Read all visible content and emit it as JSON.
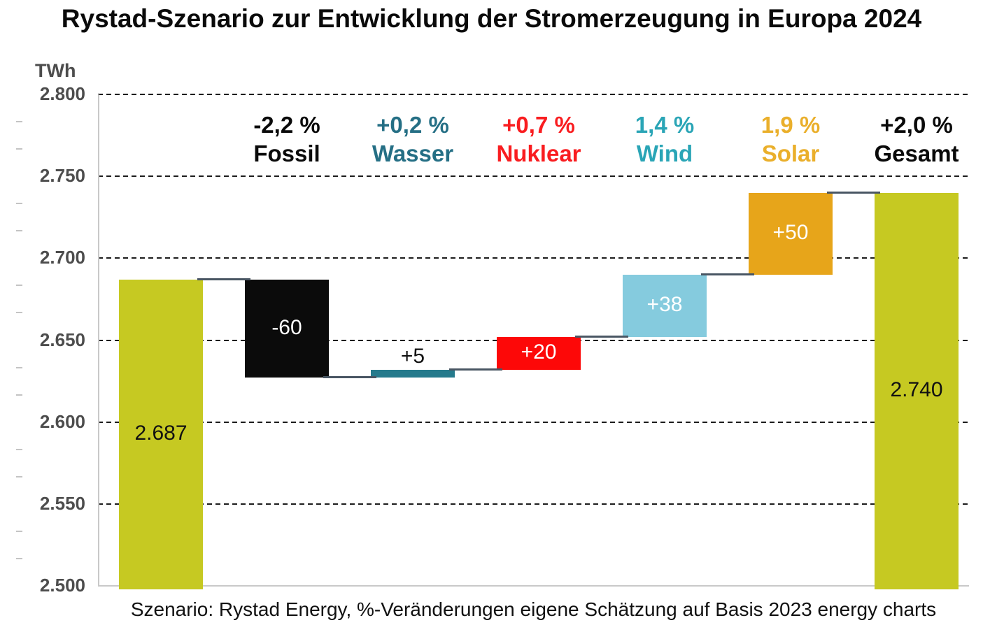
{
  "chart_data": {
    "type": "waterfall",
    "title": "Rystad-Szenario zur Entwicklung der Stromerzeugung in Europa 2024",
    "unit_label": "TWh",
    "footer": "Szenario: Rystad Energy, %-Veränderungen eigene Schätzung auf Basis 2023 energy charts",
    "grid": "horizontal dashed",
    "legend": "none",
    "y_axis": {
      "min": 2500,
      "max": 2800,
      "tick_step": 50,
      "ticks": [
        {
          "value": 2800,
          "label": "2.800"
        },
        {
          "value": 2750,
          "label": "2.750"
        },
        {
          "value": 2700,
          "label": "2.700"
        },
        {
          "value": 2650,
          "label": "2.650"
        },
        {
          "value": 2600,
          "label": "2.600"
        },
        {
          "value": 2550,
          "label": "2.550"
        },
        {
          "value": 2500,
          "label": "2.500"
        }
      ]
    },
    "style": {
      "grid_color": "#1c1c1c",
      "axis_color": "#c9c9c9",
      "tick_label_color": "#4d4d4d",
      "connector_color": "#495663",
      "background": "#ffffff"
    },
    "bars": [
      {
        "id": "start",
        "pct": "",
        "category": "",
        "kind": "total",
        "from": 2500,
        "to": 2687,
        "bar_color": "#c6c922",
        "value_label": "2.687",
        "value_color": "#111111",
        "value_pos": "inside",
        "category_color": "#0a0a0a"
      },
      {
        "id": "fossil",
        "pct": "-2,2 %",
        "category": "Fossil",
        "kind": "delta",
        "from": 2687,
        "to": 2627,
        "bar_color": "#0b0b0b",
        "value_label": "-60",
        "value_color": "#ffffff",
        "value_pos": "inside",
        "category_color": "#0a0a0a"
      },
      {
        "id": "wasser",
        "pct": "+0,2 %",
        "category": "Wasser",
        "kind": "delta",
        "from": 2627,
        "to": 2632,
        "bar_color": "#257a8c",
        "value_label": "+5",
        "value_color": "#111111",
        "value_pos": "above",
        "category_color": "#256f85"
      },
      {
        "id": "nuklear",
        "pct": "+0,7 %",
        "category": "Nuklear",
        "kind": "delta",
        "from": 2632,
        "to": 2652,
        "bar_color": "#fd0808",
        "value_label": "+20",
        "value_color": "#ffffff",
        "value_pos": "inside",
        "category_color": "#f91d20"
      },
      {
        "id": "wind",
        "pct": "1,4 %",
        "category": "Wind",
        "kind": "delta",
        "from": 2652,
        "to": 2690,
        "bar_color": "#85cbde",
        "value_label": "+38",
        "value_color": "#ffffff",
        "value_pos": "inside",
        "category_color": "#2aa5b6"
      },
      {
        "id": "solar",
        "pct": "1,9 %",
        "category": "Solar",
        "kind": "delta",
        "from": 2690,
        "to": 2740,
        "bar_color": "#e7a51a",
        "value_label": "+50",
        "value_color": "#ffffff",
        "value_pos": "inside",
        "category_color": "#eaaf2b"
      },
      {
        "id": "gesamt",
        "pct": "+2,0 %",
        "category": "Gesamt",
        "kind": "total",
        "from": 2500,
        "to": 2740,
        "bar_color": "#c6c922",
        "value_label": "2.740",
        "value_color": "#111111",
        "value_pos": "inside",
        "category_color": "#0a0a0a"
      }
    ]
  }
}
